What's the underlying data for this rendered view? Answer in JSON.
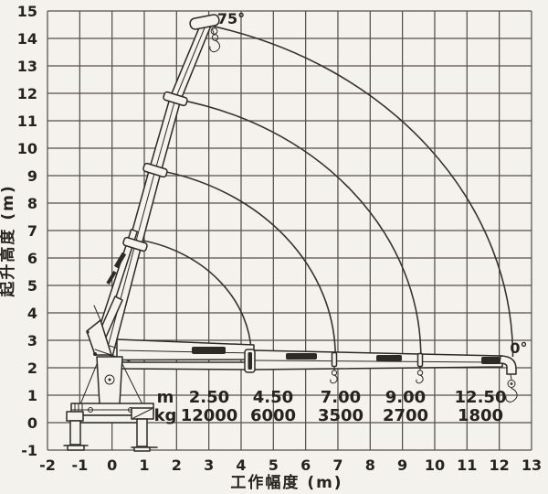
{
  "page": {
    "colors": {
      "background": "#f4f2ec",
      "grid": "#54514c",
      "ink": "#2d2a26",
      "text": "#26231f"
    }
  },
  "chart_data": {
    "type": "line",
    "subtype": "crane-working-range-and-load-chart",
    "xlabel": "工作幅度 (m)",
    "ylabel": "起升高度 (m)",
    "xlim": [
      -2,
      13
    ],
    "ylim": [
      -1,
      15
    ],
    "grid": true,
    "x_ticks": [
      -2,
      -1,
      0,
      1,
      2,
      3,
      4,
      5,
      6,
      7,
      8,
      9,
      10,
      11,
      12,
      13
    ],
    "y_ticks": [
      15,
      14,
      13,
      12,
      11,
      10,
      9,
      8,
      7,
      6,
      5,
      4,
      3,
      2,
      1,
      0,
      -1
    ],
    "boom_max_angle_label": "75°",
    "boom_min_angle_label": "0°",
    "max_lifting_height_m": 14.5,
    "load_table": {
      "radius_row_label": "m",
      "capacity_row_label": "kg",
      "radii_m": [
        "2.50",
        "4.50",
        "7.00",
        "9.00",
        "12.50"
      ],
      "capacities_kg": [
        "12000",
        "6000",
        "3500",
        "2700",
        "1800"
      ]
    },
    "tip_path_arcs": [
      {
        "radius_m": 4.35,
        "start_angle_deg": 80.0
      },
      {
        "radius_m": 6.95,
        "start_angle_deg": 78.0
      },
      {
        "radius_m": 9.6,
        "start_angle_deg": 78.0
      },
      {
        "radius_m": 12.45,
        "start_angle_deg": 75.3
      }
    ]
  }
}
